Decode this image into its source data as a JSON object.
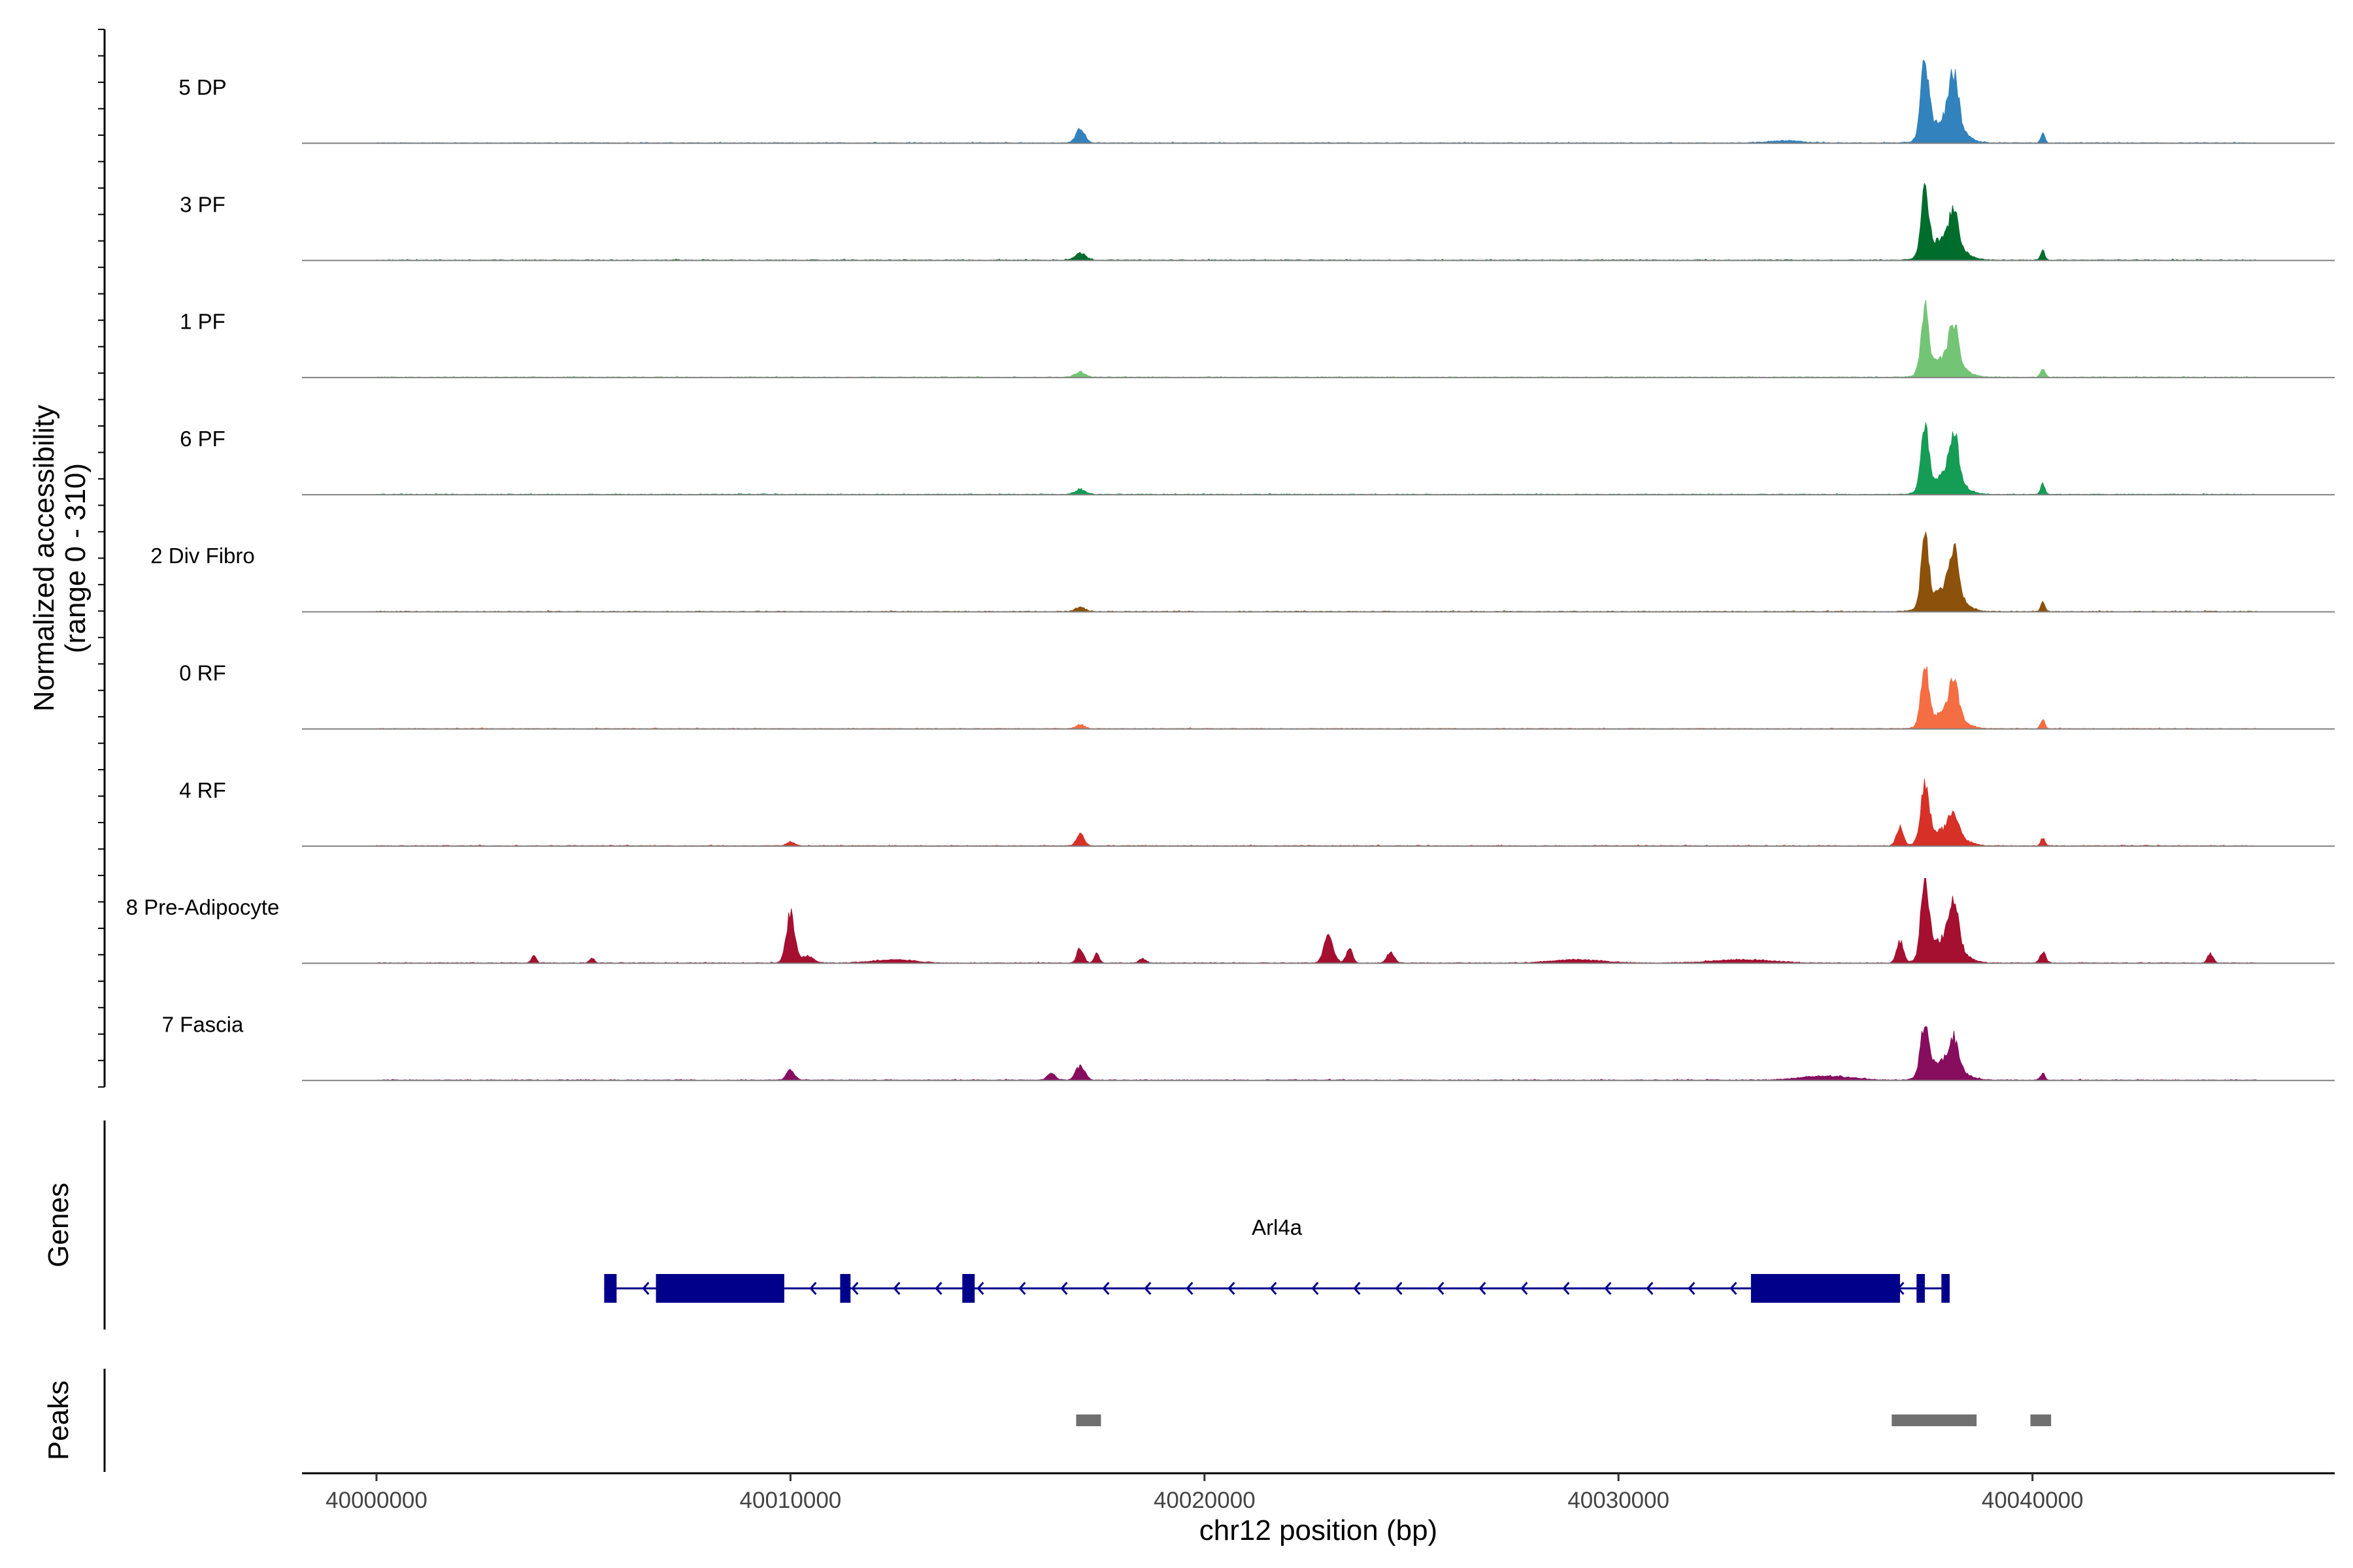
{
  "chart_data": {
    "type": "area",
    "chromosome": "chr12",
    "xlabel": "chr12 position (bp)",
    "ylabel": "Normalized accessibility",
    "ylabel_range": "(range 0 - 310)",
    "ylim": [
      0,
      310
    ],
    "xlim": [
      39998200,
      40047300
    ],
    "xticks": [
      {
        "value": 40000000,
        "label": "40000000"
      },
      {
        "value": 40010000,
        "label": "40010000"
      },
      {
        "value": 40020000,
        "label": "40020000"
      },
      {
        "value": 40030000,
        "label": "40030000"
      },
      {
        "value": 40040000,
        "label": "40040000"
      }
    ],
    "signal_range": [
      40000000,
      40045400
    ],
    "series": [
      {
        "name": "5 DP",
        "color": "#3182BD",
        "peaks": [
          [
            40017000,
            50,
            110
          ],
          [
            40037400,
            270,
            95
          ],
          [
            40037900,
            90,
            350
          ],
          [
            40038100,
            180,
            110
          ],
          [
            40040250,
            35,
            50
          ],
          [
            40034000,
            8,
            400
          ]
        ]
      },
      {
        "name": "3 PF",
        "color": "#006D2C",
        "peaks": [
          [
            40017000,
            25,
            130
          ],
          [
            40037400,
            230,
            90
          ],
          [
            40037900,
            80,
            350
          ],
          [
            40038100,
            110,
            110
          ],
          [
            40040250,
            35,
            50
          ]
        ]
      },
      {
        "name": "1 PF",
        "color": "#74C476",
        "peaks": [
          [
            40017000,
            20,
            120
          ],
          [
            40037400,
            230,
            90
          ],
          [
            40037900,
            70,
            350
          ],
          [
            40038100,
            140,
            110
          ],
          [
            40040250,
            30,
            60
          ]
        ]
      },
      {
        "name": "6 PF",
        "color": "#159C55",
        "peaks": [
          [
            40017000,
            18,
            130
          ],
          [
            40037400,
            220,
            90
          ],
          [
            40037900,
            70,
            350
          ],
          [
            40038100,
            170,
            110
          ],
          [
            40040250,
            40,
            50
          ]
        ]
      },
      {
        "name": "2 Div Fibro",
        "color": "#8C510A",
        "peaks": [
          [
            40017000,
            15,
            120
          ],
          [
            40037400,
            250,
            90
          ],
          [
            40037900,
            80,
            350
          ],
          [
            40038100,
            170,
            110
          ],
          [
            40040250,
            35,
            50
          ]
        ]
      },
      {
        "name": "0 RF",
        "color": "#F46D43",
        "peaks": [
          [
            40017000,
            15,
            100
          ],
          [
            40037400,
            220,
            90
          ],
          [
            40037900,
            60,
            350
          ],
          [
            40038100,
            130,
            110
          ],
          [
            40040250,
            35,
            50
          ]
        ]
      },
      {
        "name": "4 RF",
        "color": "#D73027",
        "peaks": [
          [
            40010000,
            15,
            90
          ],
          [
            40017000,
            45,
            90
          ],
          [
            40036800,
            70,
            80
          ],
          [
            40037400,
            200,
            100
          ],
          [
            40037900,
            60,
            350
          ],
          [
            40038100,
            80,
            110
          ],
          [
            40040250,
            30,
            50
          ]
        ]
      },
      {
        "name": "8 Pre-Adipocyte",
        "color": "#A50F30",
        "peaks": [
          [
            40010000,
            180,
            100
          ],
          [
            40010400,
            25,
            150
          ],
          [
            40003800,
            25,
            60
          ],
          [
            40005200,
            18,
            60
          ],
          [
            40017000,
            55,
            80
          ],
          [
            40017400,
            35,
            60
          ],
          [
            40023000,
            100,
            110
          ],
          [
            40023500,
            50,
            80
          ],
          [
            40024500,
            40,
            90
          ],
          [
            40018500,
            15,
            80
          ],
          [
            40037400,
            310,
            90
          ],
          [
            40036800,
            80,
            80
          ],
          [
            40038100,
            160,
            110
          ],
          [
            40037900,
            90,
            350
          ],
          [
            40040250,
            40,
            70
          ],
          [
            40044300,
            35,
            70
          ],
          [
            40033000,
            12,
            700
          ],
          [
            40029000,
            12,
            600
          ],
          [
            40012500,
            12,
            500
          ]
        ]
      },
      {
        "name": "7 Fascia",
        "color": "#870D5F",
        "peaks": [
          [
            40010000,
            40,
            90
          ],
          [
            40017000,
            50,
            110
          ],
          [
            40016300,
            25,
            100
          ],
          [
            40037400,
            180,
            100
          ],
          [
            40038100,
            100,
            110
          ],
          [
            40037900,
            70,
            350
          ],
          [
            40040250,
            25,
            50
          ],
          [
            40035000,
            15,
            600
          ]
        ]
      }
    ],
    "genes": [
      {
        "name": "Arl4a",
        "strand": "-",
        "start": 40005500,
        "end": 40038000,
        "exons": [
          [
            40005500,
            40005800
          ],
          [
            40006750,
            40009850
          ],
          [
            40011200,
            40011450
          ],
          [
            40014150,
            40014450
          ],
          [
            40033200,
            40036800
          ],
          [
            40037200,
            40037400
          ],
          [
            40037800,
            40038000
          ]
        ]
      }
    ],
    "peaks": [
      [
        40016900,
        40017500
      ],
      [
        40036600,
        40038650
      ],
      [
        40039950,
        40040450
      ]
    ],
    "panel_titles": {
      "genes": "Genes",
      "peaks": "Peaks"
    }
  }
}
